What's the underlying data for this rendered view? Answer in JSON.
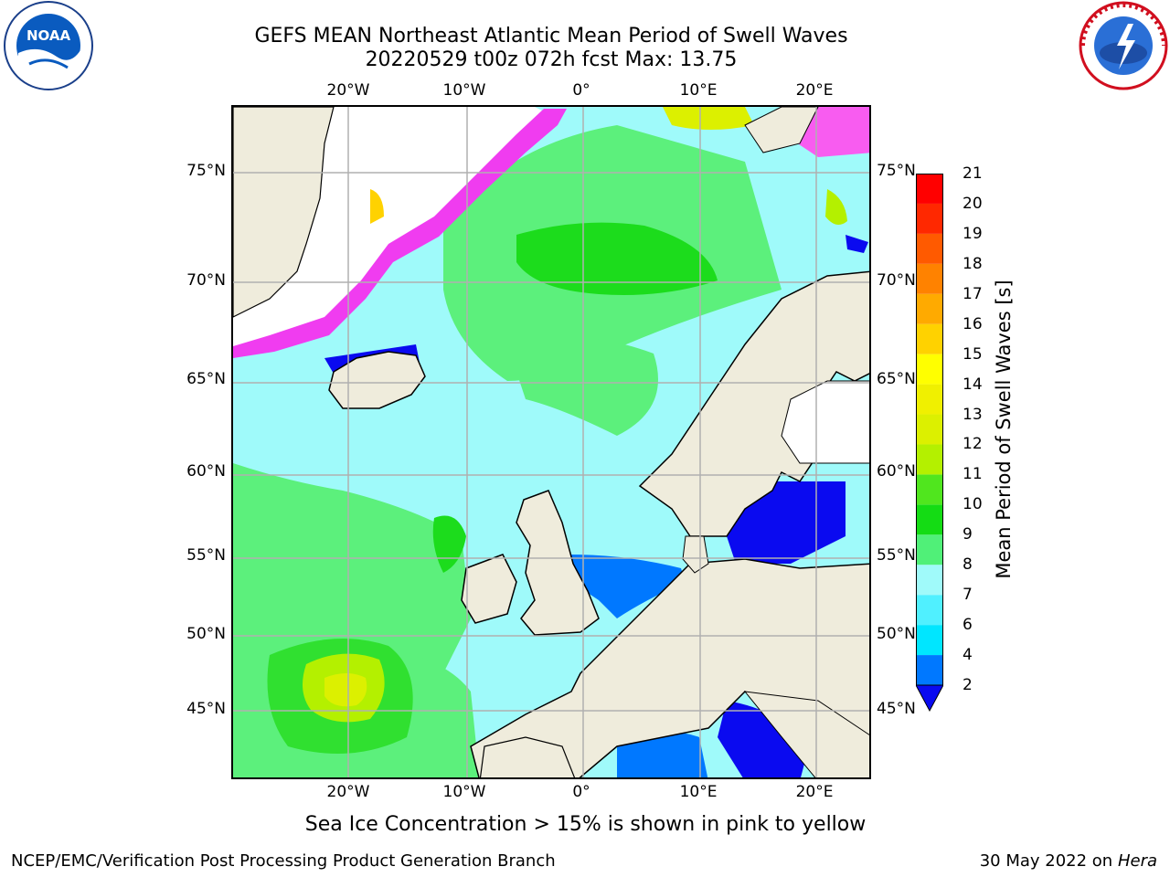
{
  "title_line1": "GEFS MEAN Northeast Atlantic Mean Period of Swell Waves",
  "title_line2": "20220529 t00z 072h fcst   Max: 13.75",
  "logos": {
    "left": {
      "name": "NOAA",
      "ring_text": "NATIONAL OCEANIC AND ATMOSPHERIC ADMINISTRATION · U.S. DEPARTMENT OF COMMERCE"
    },
    "right": {
      "name": "NATIONAL WEATHER SERVICE"
    }
  },
  "map": {
    "lat_labels": [
      "75°N",
      "70°N",
      "65°N",
      "60°N",
      "55°N",
      "50°N",
      "45°N"
    ],
    "lon_labels": [
      "20°W",
      "10°W",
      "0°",
      "10°E",
      "20°E"
    ],
    "colors": {
      "land": "#efecdc",
      "ice": "#ffffff",
      "grid": "#b0b0b0",
      "coast": "#000000"
    }
  },
  "colorbar": {
    "title": "Mean Period of Swell Waves [s]",
    "ticks": [
      "2",
      "4",
      "6",
      "7",
      "8",
      "9",
      "10",
      "11",
      "12",
      "13",
      "14",
      "15",
      "16",
      "17",
      "18",
      "19",
      "20",
      "21"
    ],
    "colors": [
      "#0a0af0",
      "#0078ff",
      "#00e6ff",
      "#50f0ff",
      "#a0fafa",
      "#50f078",
      "#14dc14",
      "#50e61e",
      "#b4f000",
      "#dcf000",
      "#f0f000",
      "#ffff00",
      "#ffd200",
      "#ffaa00",
      "#ff8200",
      "#ff5a00",
      "#ff2800",
      "#ff0000"
    ]
  },
  "caption": "Sea Ice Concentration > 15% is shown in pink to yellow",
  "footer_left": "NCEP/EMC/Verification Post Processing Product Generation Branch",
  "footer_date": "30 May 2022 on",
  "footer_host": "Hera"
}
